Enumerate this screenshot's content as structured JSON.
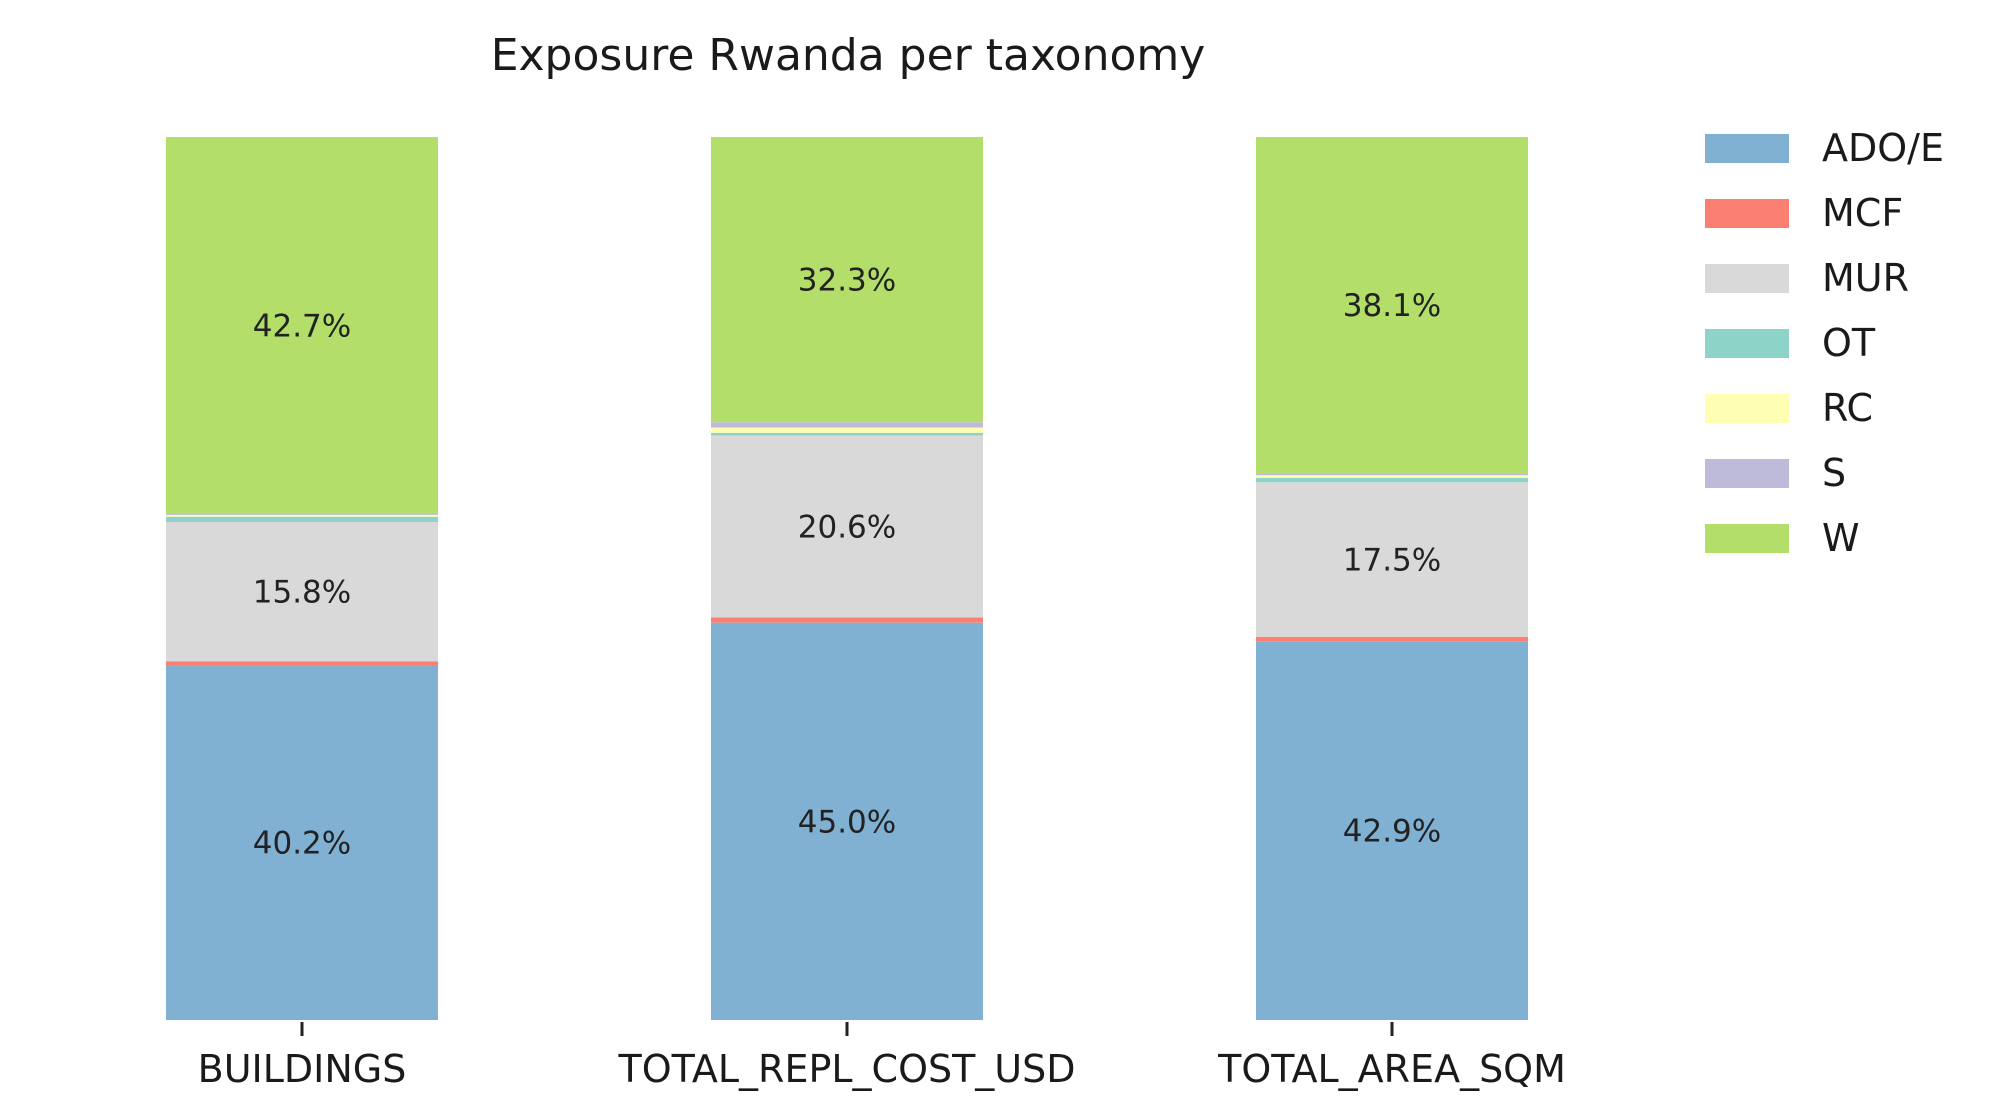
{
  "chart_data": {
    "type": "bar",
    "stacked": true,
    "normalized_percent": true,
    "title": "Exposure Rwanda per taxonomy",
    "xlabel": "",
    "ylabel": "",
    "ylim": [
      0,
      100
    ],
    "grid": false,
    "legend_position": "right",
    "categories": [
      "BUILDINGS",
      "TOTAL_REPL_COST_USD",
      "TOTAL_AREA_SQM"
    ],
    "series": [
      {
        "name": "ADO/E",
        "color": "#80b1d3",
        "values": [
          40.2,
          45.0,
          42.9
        ],
        "labels": [
          "40.2%",
          "45.0%",
          "42.9%"
        ]
      },
      {
        "name": "MCF",
        "color": "#fb8072",
        "values": [
          0.4,
          0.6,
          0.5
        ],
        "labels": [
          "",
          "",
          ""
        ]
      },
      {
        "name": "MUR",
        "color": "#d9d9d9",
        "values": [
          15.8,
          20.6,
          17.5
        ],
        "labels": [
          "15.8%",
          "20.6%",
          "17.5%"
        ]
      },
      {
        "name": "OT",
        "color": "#8dd3c7",
        "values": [
          0.6,
          0.3,
          0.5
        ],
        "labels": [
          "",
          "",
          ""
        ]
      },
      {
        "name": "RC",
        "color": "#ffffb3",
        "values": [
          0.2,
          0.6,
          0.3
        ],
        "labels": [
          "",
          "",
          ""
        ]
      },
      {
        "name": "S",
        "color": "#bebada",
        "values": [
          0.1,
          0.6,
          0.2
        ],
        "labels": [
          "",
          "",
          ""
        ]
      },
      {
        "name": "W",
        "color": "#b3de69",
        "values": [
          42.7,
          32.3,
          38.1
        ],
        "labels": [
          "42.7%",
          "32.3%",
          "38.1%"
        ]
      }
    ]
  }
}
